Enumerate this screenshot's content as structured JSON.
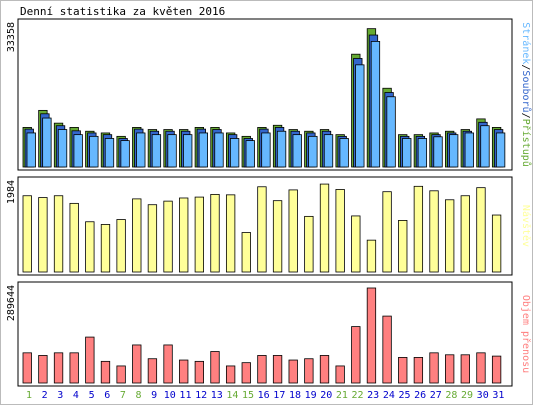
{
  "title": "Denní statistika za květen 2016",
  "colors": {
    "hits": "#66aa33",
    "files": "#3366cc",
    "pages": "#66b8ff",
    "visits": "#ffff99",
    "kbytes": "#ff8080",
    "weekend_day": "#66aa33",
    "weekday": "#0000cc",
    "panel_bg": "#ffffff",
    "border": "#000000"
  },
  "chart_data": [
    {
      "type": "bar",
      "panel": "traffic",
      "y_max_label": "33358",
      "ylim": [
        0,
        33358
      ],
      "legend": [
        {
          "label": "Stránek",
          "color_key": "pages"
        },
        {
          "label": "/",
          "color_key": "border"
        },
        {
          "label": "Souborů",
          "color_key": "files"
        },
        {
          "label": "/",
          "color_key": "border"
        },
        {
          "label": "Přístupů",
          "color_key": "hits"
        }
      ],
      "categories": [
        "1",
        "2",
        "3",
        "4",
        "5",
        "6",
        "7",
        "8",
        "9",
        "10",
        "11",
        "12",
        "13",
        "14",
        "15",
        "16",
        "17",
        "18",
        "19",
        "20",
        "21",
        "22",
        "23",
        "24",
        "25",
        "26",
        "27",
        "28",
        "29",
        "30",
        "31"
      ],
      "series": [
        {
          "name": "Přístupů",
          "color_key": "hits",
          "values": [
            9300,
            13300,
            10300,
            9300,
            8400,
            8000,
            7200,
            9300,
            8800,
            8800,
            8800,
            9300,
            9300,
            8000,
            7200,
            9300,
            9800,
            8800,
            8400,
            8800,
            7600,
            26500,
            32500,
            18500,
            7600,
            7600,
            8000,
            8400,
            8800,
            11300,
            9300
          ]
        },
        {
          "name": "Souborů",
          "color_key": "files",
          "values": [
            8900,
            12500,
            9700,
            8500,
            8000,
            7600,
            6700,
            8900,
            8400,
            8400,
            8400,
            8900,
            8800,
            7600,
            6700,
            8900,
            9300,
            8400,
            8000,
            8400,
            7200,
            25500,
            31000,
            17500,
            7200,
            7200,
            7600,
            8000,
            8400,
            10500,
            8800
          ]
        },
        {
          "name": "Stránek",
          "color_key": "pages",
          "values": [
            8000,
            11500,
            8800,
            7600,
            7200,
            6700,
            6200,
            8000,
            7600,
            7600,
            7600,
            8000,
            8000,
            6700,
            6200,
            8000,
            8400,
            7600,
            7200,
            7600,
            6700,
            24000,
            29500,
            16500,
            6700,
            6700,
            7100,
            7600,
            8000,
            9700,
            8000
          ]
        }
      ]
    },
    {
      "type": "bar",
      "panel": "visits",
      "y_max_label": "1984",
      "ylim": [
        0,
        1984
      ],
      "legend": [
        {
          "label": "Návštěv",
          "color_key": "visits"
        }
      ],
      "categories": [
        "1",
        "2",
        "3",
        "4",
        "5",
        "6",
        "7",
        "8",
        "9",
        "10",
        "11",
        "12",
        "13",
        "14",
        "15",
        "16",
        "17",
        "18",
        "19",
        "20",
        "21",
        "22",
        "23",
        "24",
        "25",
        "26",
        "27",
        "28",
        "29",
        "30",
        "31"
      ],
      "series": [
        {
          "name": "Návštěv",
          "color_key": "visits",
          "values": [
            1700,
            1660,
            1700,
            1530,
            1120,
            1060,
            1170,
            1630,
            1500,
            1580,
            1650,
            1670,
            1730,
            1720,
            880,
            1900,
            1590,
            1830,
            1240,
            1960,
            1840,
            1250,
            710,
            1790,
            1150,
            1910,
            1810,
            1610,
            1700,
            1880,
            1270
          ]
        }
      ]
    },
    {
      "type": "bar",
      "panel": "kbytes",
      "y_max_label": "289644",
      "ylim": [
        0,
        289644
      ],
      "legend": [
        {
          "label": "Objem přenosu",
          "color_key": "kbytes"
        }
      ],
      "categories": [
        "1",
        "2",
        "3",
        "4",
        "5",
        "6",
        "7",
        "8",
        "9",
        "10",
        "11",
        "12",
        "13",
        "14",
        "15",
        "16",
        "17",
        "18",
        "19",
        "20",
        "21",
        "22",
        "23",
        "24",
        "25",
        "26",
        "27",
        "28",
        "29",
        "30",
        "31"
      ],
      "series": [
        {
          "name": "Objem přenosu",
          "color_key": "kbytes",
          "values": [
            92000,
            84000,
            92000,
            92000,
            140000,
            66000,
            52000,
            116000,
            74000,
            116000,
            70000,
            66000,
            96000,
            52000,
            62000,
            84000,
            84000,
            70000,
            74000,
            84000,
            52000,
            172000,
            289644,
            204000,
            78000,
            78000,
            92000,
            86000,
            86000,
            92000,
            82000
          ]
        }
      ]
    }
  ],
  "day_labels": [
    {
      "text": "1",
      "weekend": true
    },
    {
      "text": "2",
      "weekend": false
    },
    {
      "text": "3",
      "weekend": false
    },
    {
      "text": "4",
      "weekend": false
    },
    {
      "text": "5",
      "weekend": false
    },
    {
      "text": "6",
      "weekend": false
    },
    {
      "text": "7",
      "weekend": true
    },
    {
      "text": "8",
      "weekend": true
    },
    {
      "text": "9",
      "weekend": false
    },
    {
      "text": "10",
      "weekend": false
    },
    {
      "text": "11",
      "weekend": false
    },
    {
      "text": "12",
      "weekend": false
    },
    {
      "text": "13",
      "weekend": false
    },
    {
      "text": "14",
      "weekend": true
    },
    {
      "text": "15",
      "weekend": true
    },
    {
      "text": "16",
      "weekend": false
    },
    {
      "text": "17",
      "weekend": false
    },
    {
      "text": "18",
      "weekend": false
    },
    {
      "text": "19",
      "weekend": false
    },
    {
      "text": "20",
      "weekend": false
    },
    {
      "text": "21",
      "weekend": true
    },
    {
      "text": "22",
      "weekend": true
    },
    {
      "text": "23",
      "weekend": false
    },
    {
      "text": "24",
      "weekend": false
    },
    {
      "text": "25",
      "weekend": false
    },
    {
      "text": "26",
      "weekend": false
    },
    {
      "text": "27",
      "weekend": false
    },
    {
      "text": "28",
      "weekend": true
    },
    {
      "text": "29",
      "weekend": true
    },
    {
      "text": "30",
      "weekend": false
    },
    {
      "text": "31",
      "weekend": false
    }
  ]
}
